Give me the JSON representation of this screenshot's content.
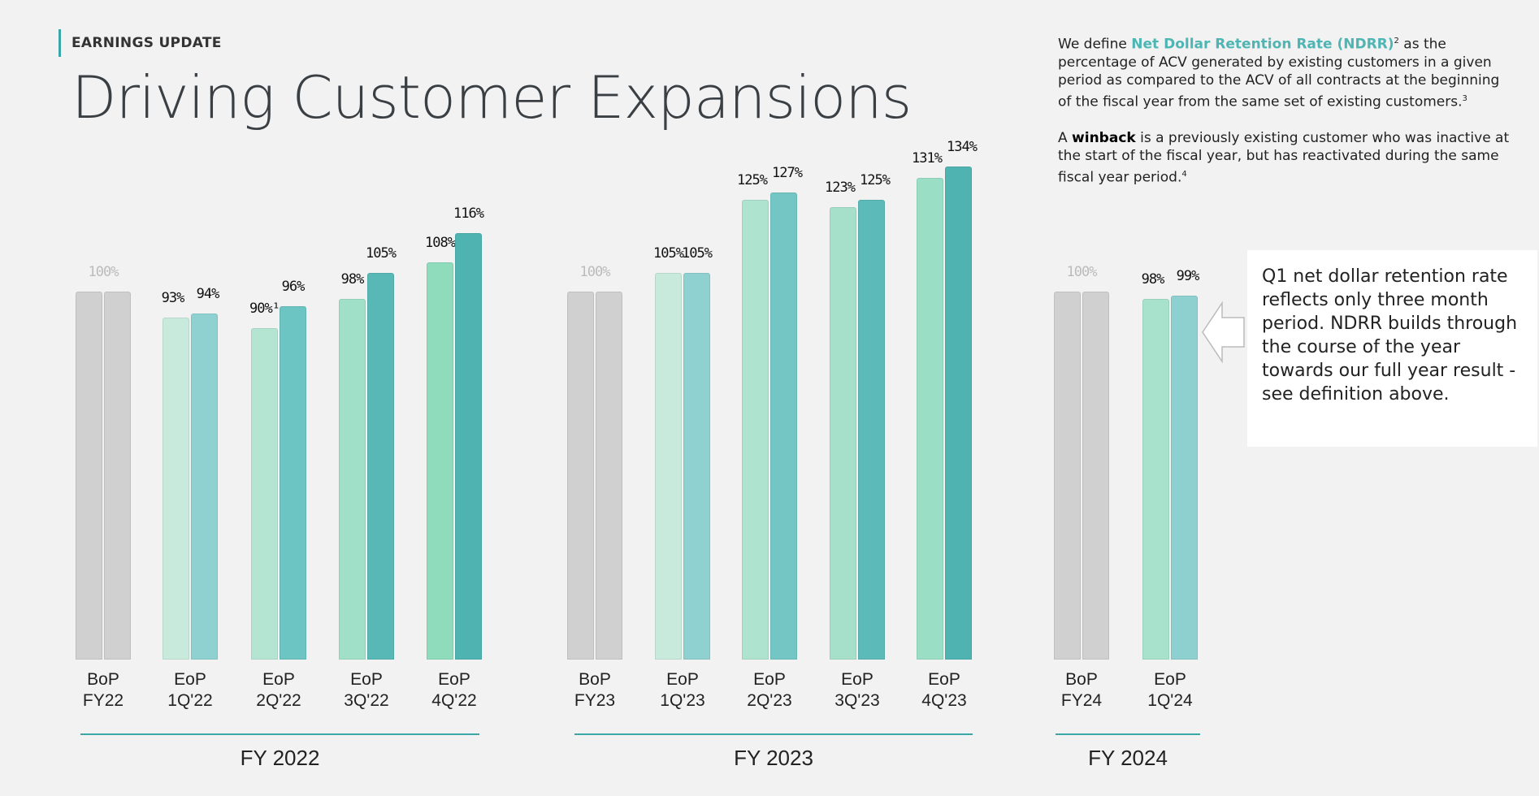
{
  "header": {
    "eyebrow": "EARNINGS UPDATE",
    "title": "Driving Customer Expansions"
  },
  "definitions": {
    "ndrr_prefix": "We define ",
    "ndrr_term": "Net Dollar Retention Rate (NDRR)",
    "ndrr_sup": "2",
    "ndrr_body": " as the percentage of ACV generated by existing customers in a given period as compared to the ACV of all contracts at the beginning of the fiscal year from the same set of existing customers.",
    "ndrr_sup2": "3",
    "winback_prefix": "A ",
    "winback_term": "winback",
    "winback_body": " is a previously existing customer who was inactive at the start of the fiscal year, but has reactivated during the same fiscal year period.",
    "winback_sup": "4"
  },
  "callout": {
    "text": "Q1 net dollar retention rate reflects only three month period. NDRR builds through the course of the year towards our full year result - see definition above."
  },
  "colors": {
    "accent": "#3aa6a8",
    "highlight": "#4db5b3",
    "bop_gray": "#d0d0d0"
  },
  "chart_data": {
    "type": "bar",
    "title": "Driving Customer Expansions",
    "ylim": [
      0,
      140
    ],
    "groups": [
      {
        "name": "FY 2022",
        "categories": [
          {
            "label1": "BoP",
            "label2": "FY22",
            "values": [
              100,
              100
            ],
            "value_labels": [
              "100%",
              ""
            ],
            "colors": [
              "#d0d0d0",
              "#d0d0d0"
            ],
            "bop": true
          },
          {
            "label1": "EoP",
            "label2": "1Q'22",
            "values": [
              93,
              94
            ],
            "value_labels": [
              "93%",
              "94%"
            ],
            "colors": [
              "#c8eadc",
              "#8fd1d0"
            ]
          },
          {
            "label1": "EoP",
            "label2": "2Q'22",
            "values": [
              90,
              96
            ],
            "value_labels": [
              "90%¹",
              "96%"
            ],
            "colors": [
              "#b4e4d2",
              "#6cc4c3"
            ]
          },
          {
            "label1": "EoP",
            "label2": "3Q'22",
            "values": [
              98,
              105
            ],
            "value_labels": [
              "98%",
              "105%"
            ],
            "colors": [
              "#a0e0c8",
              "#58b8b6"
            ]
          },
          {
            "label1": "EoP",
            "label2": "4Q'22",
            "values": [
              108,
              116
            ],
            "value_labels": [
              "108%",
              "116%"
            ],
            "colors": [
              "#8edcbc",
              "#4fb3b1"
            ]
          }
        ]
      },
      {
        "name": "FY 2023",
        "categories": [
          {
            "label1": "BoP",
            "label2": "FY23",
            "values": [
              100,
              100
            ],
            "value_labels": [
              "100%",
              ""
            ],
            "colors": [
              "#d0d0d0",
              "#d0d0d0"
            ],
            "bop": true
          },
          {
            "label1": "EoP",
            "label2": "1Q'23",
            "values": [
              105,
              105
            ],
            "value_labels": [
              "105%",
              "105%"
            ],
            "colors": [
              "#c8eadc",
              "#8fd1d0"
            ]
          },
          {
            "label1": "EoP",
            "label2": "2Q'23",
            "values": [
              125,
              127
            ],
            "value_labels": [
              "125%",
              "127%"
            ],
            "colors": [
              "#ade3cf",
              "#74c6c5"
            ]
          },
          {
            "label1": "EoP",
            "label2": "3Q'23",
            "values": [
              123,
              125
            ],
            "value_labels": [
              "123%",
              "125%"
            ],
            "colors": [
              "#a6e0cb",
              "#5cbab8"
            ]
          },
          {
            "label1": "EoP",
            "label2": "4Q'23",
            "values": [
              131,
              134
            ],
            "value_labels": [
              "131%",
              "134%"
            ],
            "colors": [
              "#9adfc5",
              "#4fb3b1"
            ]
          }
        ]
      },
      {
        "name": "FY 2024",
        "categories": [
          {
            "label1": "BoP",
            "label2": "FY24",
            "values": [
              100,
              100
            ],
            "value_labels": [
              "100%",
              ""
            ],
            "colors": [
              "#d0d0d0",
              "#d0d0d0"
            ],
            "bop": true
          },
          {
            "label1": "EoP",
            "label2": "1Q'24",
            "values": [
              98,
              99
            ],
            "value_labels": [
              "98%",
              "99%"
            ],
            "colors": [
              "#a8e2cc",
              "#8ed0d0"
            ]
          }
        ]
      }
    ]
  }
}
